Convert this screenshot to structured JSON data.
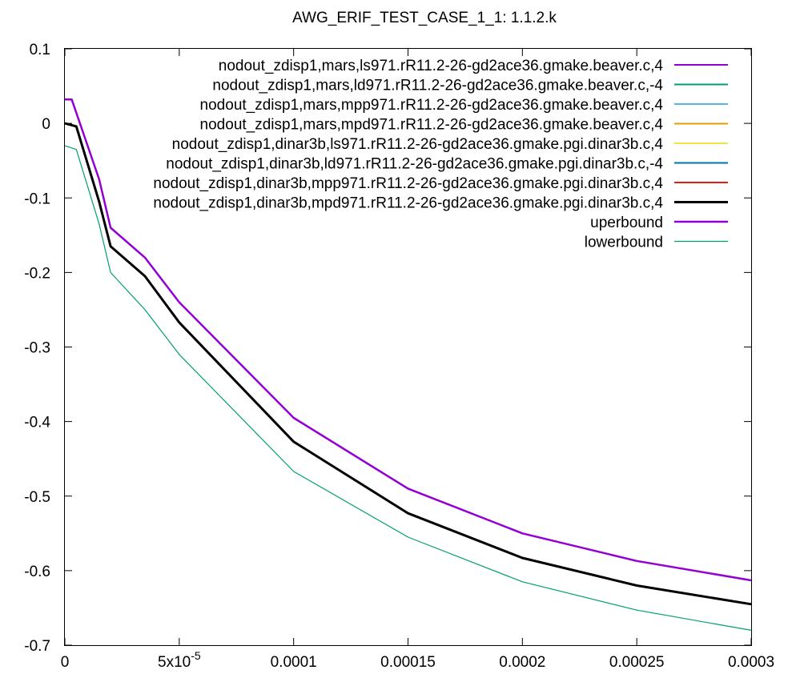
{
  "chart_data": {
    "type": "line",
    "title": "AWG_ERIF_TEST_CASE_1_1: 1.1.2.k",
    "xlabel": "",
    "ylabel": "",
    "xlim": [
      0,
      0.0003
    ],
    "ylim": [
      -0.7,
      0.1
    ],
    "grid": false,
    "legend_position": "top-right",
    "x_ticks": [
      {
        "value": 0,
        "label": "0"
      },
      {
        "value": 5e-05,
        "label": "5x10",
        "sup": "-5"
      },
      {
        "value": 0.0001,
        "label": "0.0001"
      },
      {
        "value": 0.00015,
        "label": "0.00015"
      },
      {
        "value": 0.0002,
        "label": "0.0002"
      },
      {
        "value": 0.00025,
        "label": "0.00025"
      },
      {
        "value": 0.0003,
        "label": "0.0003"
      }
    ],
    "y_ticks": [
      {
        "value": 0.1,
        "label": "0.1"
      },
      {
        "value": 0,
        "label": "0"
      },
      {
        "value": -0.1,
        "label": "-0.1"
      },
      {
        "value": -0.2,
        "label": "-0.2"
      },
      {
        "value": -0.3,
        "label": "-0.3"
      },
      {
        "value": -0.4,
        "label": "-0.4"
      },
      {
        "value": -0.5,
        "label": "-0.5"
      },
      {
        "value": -0.6,
        "label": "-0.6"
      },
      {
        "value": -0.7,
        "label": "-0.7"
      }
    ],
    "series": [
      {
        "name": "nodout_zdisp1,mars,ls971.rR11.2-26-gd2ace36.gmake.beaver.c,4",
        "color": "#9400d3",
        "width": 2,
        "x": [
          0,
          5e-06,
          1.5e-05,
          2e-05,
          3.5e-05,
          5e-05,
          0.0001,
          0.00015,
          0.0002,
          0.00025,
          0.0003
        ],
        "y": [
          0,
          -0.004,
          -0.105,
          -0.165,
          -0.205,
          -0.267,
          -0.427,
          -0.523,
          -0.583,
          -0.62,
          -0.645
        ]
      },
      {
        "name": "nodout_zdisp1,mars,ld971.rR11.2-26-gd2ace36.gmake.beaver.c,-4",
        "color": "#009e73",
        "width": 2,
        "x": [
          0,
          5e-06,
          1.5e-05,
          2e-05,
          3.5e-05,
          5e-05,
          0.0001,
          0.00015,
          0.0002,
          0.00025,
          0.0003
        ],
        "y": [
          0,
          -0.004,
          -0.105,
          -0.165,
          -0.205,
          -0.267,
          -0.427,
          -0.523,
          -0.583,
          -0.62,
          -0.645
        ]
      },
      {
        "name": "nodout_zdisp1,mars,mpp971.rR11.2-26-gd2ace36.gmake.beaver.c,4",
        "color": "#56b4e9",
        "width": 2,
        "x": [
          0,
          5e-06,
          1.5e-05,
          2e-05,
          3.5e-05,
          5e-05,
          0.0001,
          0.00015,
          0.0002,
          0.00025,
          0.0003
        ],
        "y": [
          0,
          -0.004,
          -0.105,
          -0.165,
          -0.205,
          -0.267,
          -0.427,
          -0.523,
          -0.583,
          -0.62,
          -0.645
        ]
      },
      {
        "name": "nodout_zdisp1,mars,mpd971.rR11.2-26-gd2ace36.gmake.beaver.c,4",
        "color": "#e69f00",
        "width": 2,
        "x": [
          0,
          5e-06,
          1.5e-05,
          2e-05,
          3.5e-05,
          5e-05,
          0.0001,
          0.00015,
          0.0002,
          0.00025,
          0.0003
        ],
        "y": [
          0,
          -0.004,
          -0.105,
          -0.165,
          -0.205,
          -0.267,
          -0.427,
          -0.523,
          -0.583,
          -0.62,
          -0.645
        ]
      },
      {
        "name": "nodout_zdisp1,dinar3b,ls971.rR11.2-26-gd2ace36.gmake.pgi.dinar3b.c,4",
        "color": "#f0e442",
        "width": 2,
        "x": [
          0,
          5e-06,
          1.5e-05,
          2e-05,
          3.5e-05,
          5e-05,
          0.0001,
          0.00015,
          0.0002,
          0.00025,
          0.0003
        ],
        "y": [
          0,
          -0.004,
          -0.105,
          -0.165,
          -0.205,
          -0.267,
          -0.427,
          -0.523,
          -0.583,
          -0.62,
          -0.645
        ]
      },
      {
        "name": "nodout_zdisp1,dinar3b,ld971.rR11.2-26-gd2ace36.gmake.pgi.dinar3b.c,-4",
        "color": "#0072b2",
        "width": 2,
        "x": [
          0,
          5e-06,
          1.5e-05,
          2e-05,
          3.5e-05,
          5e-05,
          0.0001,
          0.00015,
          0.0002,
          0.00025,
          0.0003
        ],
        "y": [
          0,
          -0.004,
          -0.105,
          -0.165,
          -0.205,
          -0.267,
          -0.427,
          -0.523,
          -0.583,
          -0.62,
          -0.645
        ]
      },
      {
        "name": "nodout_zdisp1,dinar3b,mpp971.rR11.2-26-gd2ace36.gmake.pgi.dinar3b.c,4",
        "color": "#e51e10",
        "width": 2,
        "x": [
          0,
          5e-06,
          1.5e-05,
          2e-05,
          3.5e-05,
          5e-05,
          0.0001,
          0.00015,
          0.0002,
          0.00025,
          0.0003
        ],
        "y": [
          0,
          -0.004,
          -0.105,
          -0.165,
          -0.205,
          -0.267,
          -0.427,
          -0.523,
          -0.583,
          -0.62,
          -0.645
        ]
      },
      {
        "name": "nodout_zdisp1,dinar3b,mpd971.rR11.2-26-gd2ace36.gmake.pgi.dinar3b.c,4",
        "color": "#000000",
        "width": 3,
        "x": [
          0,
          5e-06,
          1.5e-05,
          2e-05,
          3.5e-05,
          5e-05,
          0.0001,
          0.00015,
          0.0002,
          0.00025,
          0.0003
        ],
        "y": [
          0,
          -0.004,
          -0.105,
          -0.165,
          -0.205,
          -0.267,
          -0.427,
          -0.523,
          -0.583,
          -0.62,
          -0.645
        ]
      },
      {
        "name": "uperbound",
        "color": "#9400d3",
        "width": 2.5,
        "x": [
          0,
          3e-06,
          1.5e-05,
          2e-05,
          3.5e-05,
          5e-05,
          0.0001,
          0.00015,
          0.0002,
          0.00025,
          0.0003
        ],
        "y": [
          0.032,
          0.032,
          -0.075,
          -0.14,
          -0.18,
          -0.24,
          -0.395,
          -0.49,
          -0.55,
          -0.587,
          -0.613
        ]
      },
      {
        "name": "lowerbound",
        "color": "#009e73",
        "width": 1.2,
        "x": [
          0,
          5e-06,
          1.5e-05,
          2e-05,
          3.5e-05,
          5e-05,
          0.0001,
          0.00015,
          0.0002,
          0.00025,
          0.0003
        ],
        "y": [
          -0.03,
          -0.035,
          -0.135,
          -0.2,
          -0.25,
          -0.31,
          -0.467,
          -0.555,
          -0.615,
          -0.653,
          -0.68
        ]
      }
    ]
  }
}
